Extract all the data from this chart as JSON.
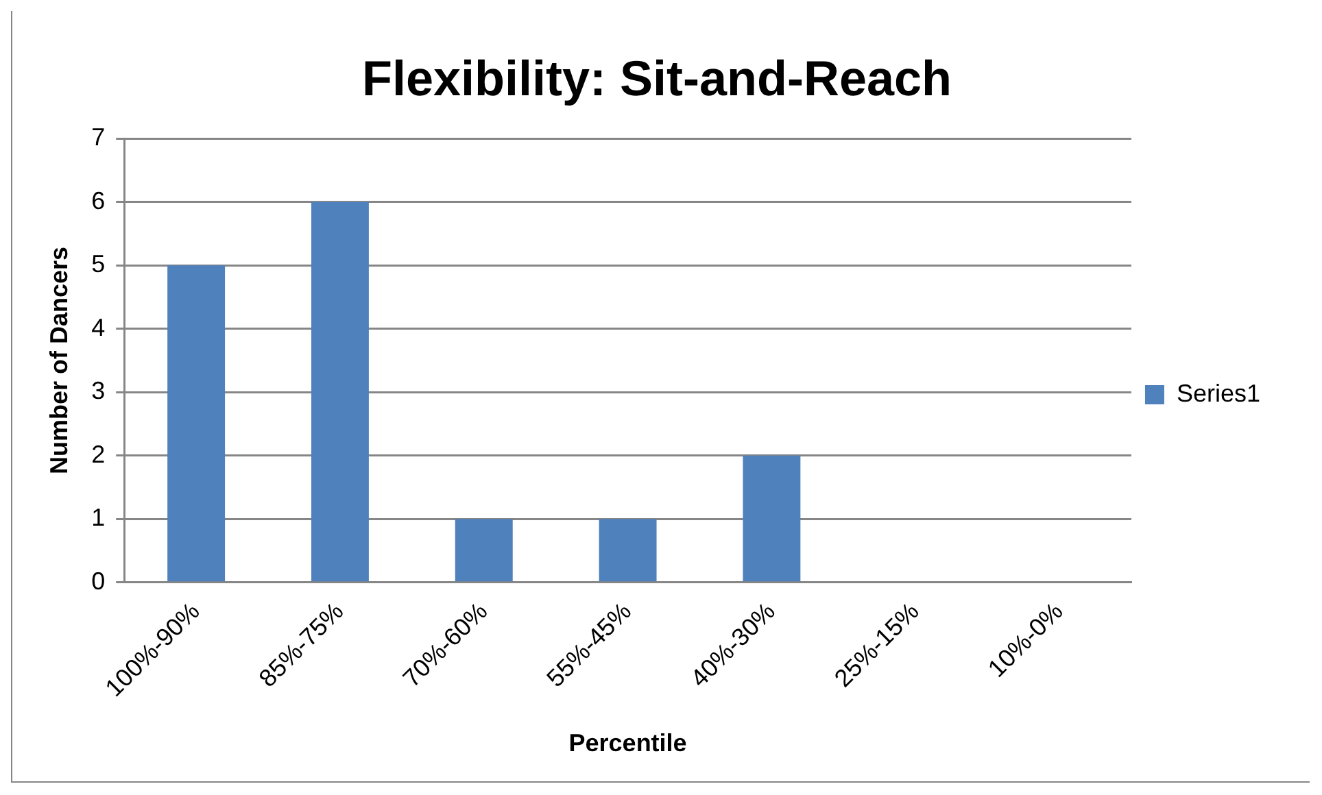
{
  "chart_data": {
    "type": "bar",
    "title": "Flexibility: Sit-and-Reach",
    "xlabel": "Percentile",
    "ylabel": "Number of Dancers",
    "categories": [
      "100%-90%",
      "85%-75%",
      "70%-60%",
      "55%-45%",
      "40%-30%",
      "25%-15%",
      "10%-0%"
    ],
    "series": [
      {
        "name": "Series1",
        "color": "#4f81bd",
        "values": [
          5,
          6,
          1,
          1,
          2,
          0,
          0
        ]
      }
    ],
    "ylim": [
      0,
      7
    ],
    "yticks": [
      0,
      1,
      2,
      3,
      4,
      5,
      6,
      7
    ],
    "grid": "y",
    "legend": "right"
  }
}
